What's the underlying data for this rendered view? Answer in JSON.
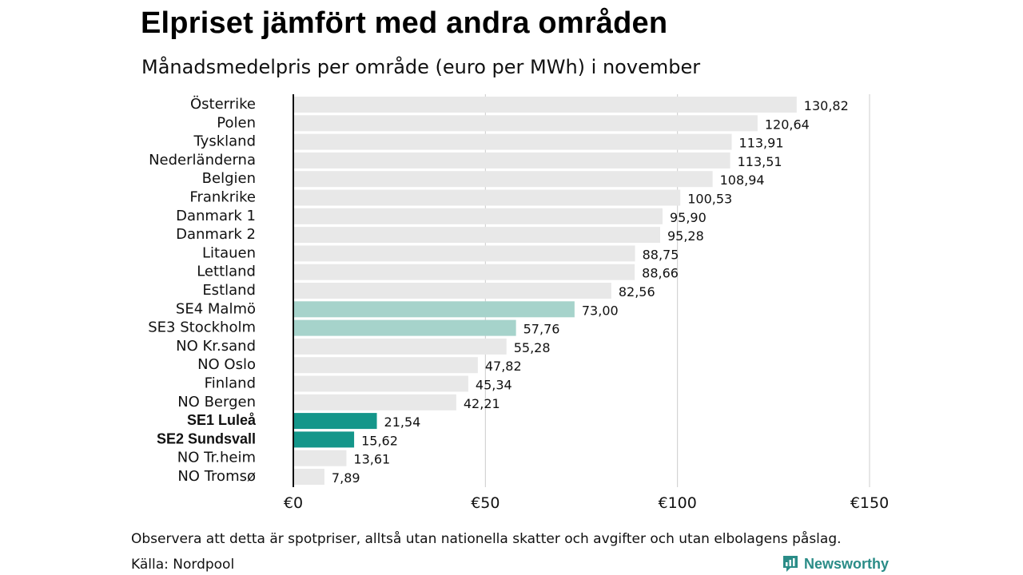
{
  "title": "Elpriset jämfört med andra områden",
  "subtitle": "Månadsmedelpris per område (euro per MWh) i november",
  "note": "Observera att detta är spotpriser, alltså utan nationella skatter och avgifter och utan elbolagens påslag.",
  "source": "Källa: Nordpool",
  "logo_text": "Newsworthy",
  "colors": {
    "default_bar": "#e8e8e8",
    "light_teal": "#a6d3cb",
    "dark_teal": "#14968a",
    "axis": "#111111",
    "grid": "#cccccc"
  },
  "chart_data": {
    "type": "bar",
    "orientation": "horizontal",
    "categories": [
      "Österrike",
      "Polen",
      "Tyskland",
      "Nederländerna",
      "Belgien",
      "Frankrike",
      "Danmark  1",
      "Danmark  2",
      "Litauen",
      "Lettland",
      "Estland",
      "SE4  Malmö",
      "SE3  Stockholm",
      "NO Kr.sand",
      "NO Oslo",
      "Finland",
      "NO Bergen",
      "SE1 Luleå",
      "SE2 Sundsvall",
      "NO Tr.heim",
      "NO Tromsø"
    ],
    "values": [
      130.82,
      120.64,
      113.91,
      113.51,
      108.94,
      100.53,
      95.9,
      95.28,
      88.75,
      88.66,
      82.56,
      73.0,
      57.76,
      55.28,
      47.82,
      45.34,
      42.21,
      21.54,
      15.62,
      13.61,
      7.89
    ],
    "value_labels": [
      "130,82",
      "120,64",
      "113,91",
      "113,51",
      "108,94",
      "100,53",
      "95,90",
      "95,28",
      "88,75",
      "88,66",
      "82,56",
      "73,00",
      "57,76",
      "55,28",
      "47,82",
      "45,34",
      "42,21",
      "21,54",
      "15,62",
      "13,61",
      "7,89"
    ],
    "highlight": [
      "default",
      "default",
      "default",
      "default",
      "default",
      "default",
      "default",
      "default",
      "default",
      "default",
      "default",
      "light",
      "light",
      "default",
      "default",
      "default",
      "default",
      "dark",
      "dark",
      "default",
      "default"
    ],
    "bold_labels": [
      false,
      false,
      false,
      false,
      false,
      false,
      false,
      false,
      false,
      false,
      false,
      false,
      false,
      false,
      false,
      false,
      false,
      true,
      true,
      false,
      false
    ],
    "x_ticks": [
      0,
      50,
      100,
      150
    ],
    "x_tick_labels": [
      "€0",
      "€50",
      "€100",
      "€150"
    ],
    "xlim": [
      0,
      150
    ],
    "grid": true
  }
}
